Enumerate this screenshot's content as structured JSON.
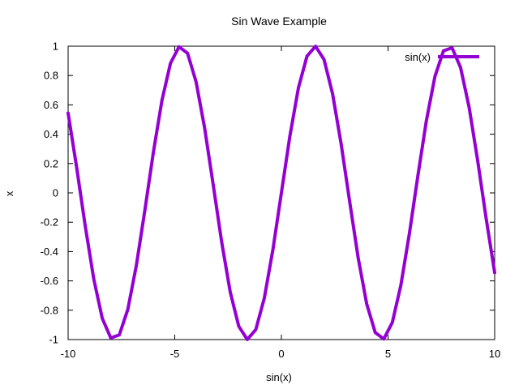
{
  "chart_data": {
    "type": "line",
    "title": "Sin Wave Example",
    "xlabel": "sin(x)",
    "ylabel": "x",
    "xlim": [
      -10,
      10
    ],
    "ylim": [
      -1,
      1
    ],
    "xticks": [
      "-10",
      "-5",
      "0",
      "5",
      "10"
    ],
    "yticks": [
      "-1",
      "-0.8",
      "-0.6",
      "-0.4",
      "-0.2",
      "0",
      "0.2",
      "0.4",
      "0.6",
      "0.8",
      "1"
    ],
    "grid": false,
    "legend_position": "top-right",
    "series": [
      {
        "name": "sin(x)",
        "color": "#9400d3",
        "x": [
          -10.0,
          -9.6,
          -9.2,
          -8.8,
          -8.4,
          -8.0,
          -7.6,
          -7.2,
          -6.8,
          -6.4,
          -6.0,
          -5.6,
          -5.2,
          -4.8,
          -4.4,
          -4.0,
          -3.6,
          -3.2,
          -2.8,
          -2.4,
          -2.0,
          -1.6,
          -1.2,
          -0.8,
          -0.4,
          0.0,
          0.4,
          0.8,
          1.2,
          1.6,
          2.0,
          2.4,
          2.8,
          3.2,
          3.6,
          4.0,
          4.4,
          4.8,
          5.2,
          5.6,
          6.0,
          6.4,
          6.8,
          7.2,
          7.6,
          8.0,
          8.4,
          8.8,
          9.2,
          9.6,
          10.0
        ],
        "y": [
          0.544,
          0.174,
          -0.223,
          -0.585,
          -0.855,
          -0.989,
          -0.968,
          -0.794,
          -0.494,
          -0.117,
          0.279,
          0.631,
          0.884,
          0.996,
          0.952,
          0.757,
          0.443,
          0.058,
          -0.335,
          -0.675,
          -0.909,
          -0.9996,
          -0.932,
          -0.717,
          -0.389,
          0.0,
          0.389,
          0.717,
          0.932,
          0.9996,
          0.909,
          0.675,
          0.335,
          -0.058,
          -0.443,
          -0.757,
          -0.952,
          -0.996,
          -0.884,
          -0.631,
          -0.279,
          0.117,
          0.494,
          0.794,
          0.968,
          0.989,
          0.855,
          0.585,
          0.223,
          -0.174,
          -0.544
        ]
      }
    ]
  }
}
